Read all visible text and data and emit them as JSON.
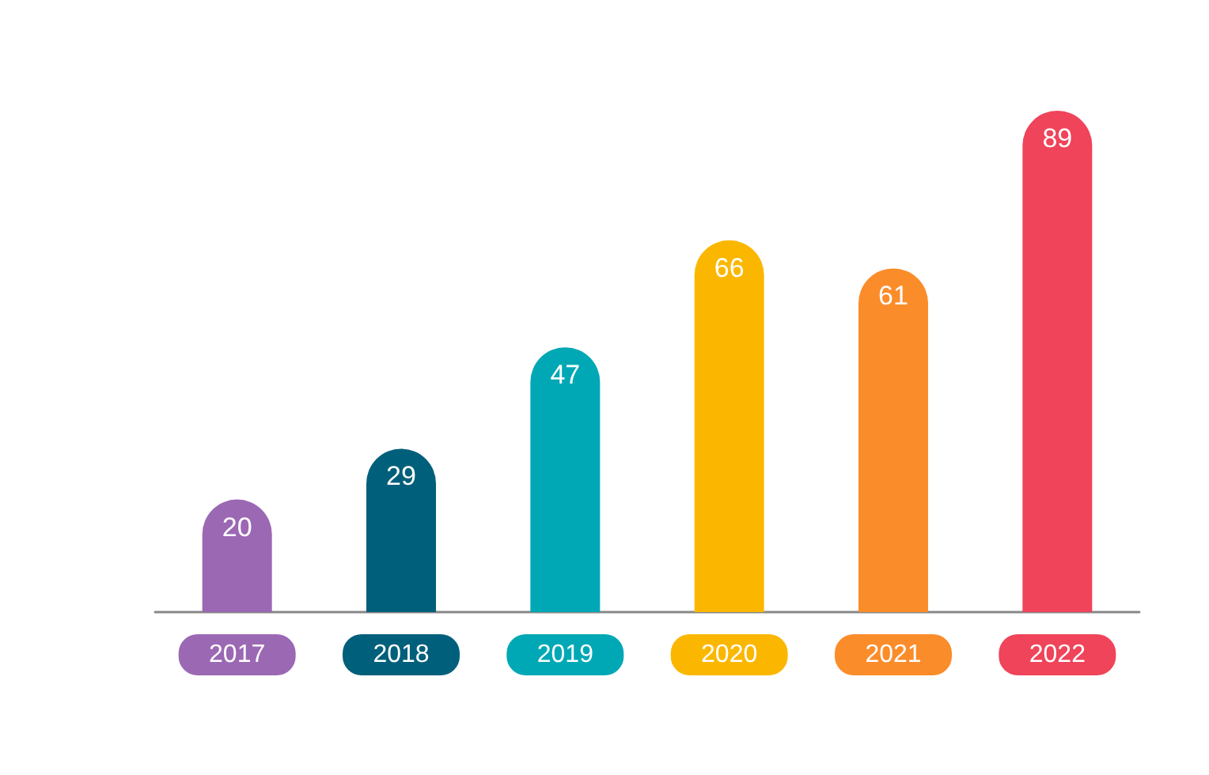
{
  "chart_data": {
    "type": "bar",
    "categories": [
      "2017",
      "2018",
      "2019",
      "2020",
      "2021",
      "2022"
    ],
    "values": [
      20,
      29,
      47,
      66,
      61,
      89
    ],
    "colors": [
      "#9b68b4",
      "#005f7a",
      "#00a8b5",
      "#fbb700",
      "#fb8c2a",
      "#ef4459"
    ],
    "data_labels": true
  }
}
